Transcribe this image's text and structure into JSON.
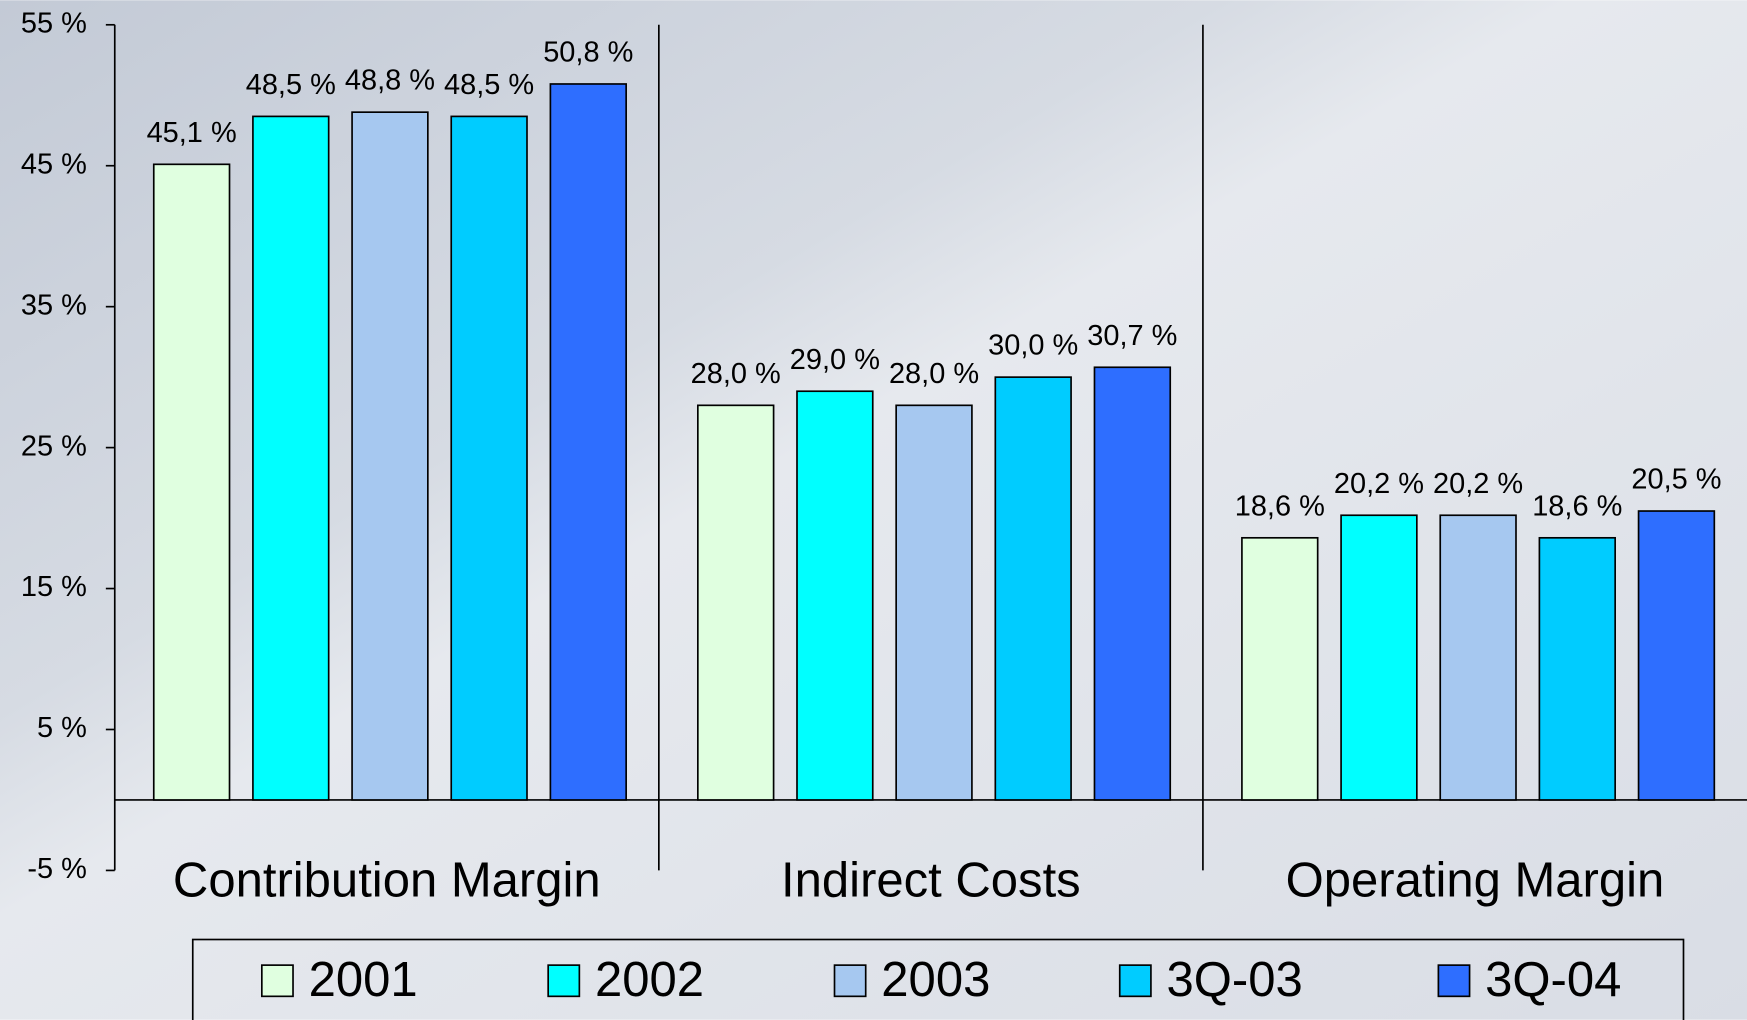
{
  "chart_data": {
    "type": "bar",
    "categories": [
      "Contribution Margin",
      "Indirect Costs",
      "Operating Margin"
    ],
    "series": [
      {
        "name": "2001",
        "color": "#e0ffe0",
        "values": [
          45.1,
          28.0,
          18.6
        ],
        "value_labels": [
          "45,1 %",
          "28,0 %",
          "18,6 %"
        ]
      },
      {
        "name": "2002",
        "color": "#00ffff",
        "values": [
          48.5,
          29.0,
          20.2
        ],
        "value_labels": [
          "48,5 %",
          "29,0 %",
          "20,2 %"
        ]
      },
      {
        "name": "2003",
        "color": "#a6c8f0",
        "values": [
          48.8,
          28.0,
          20.2
        ],
        "value_labels": [
          "48,8 %",
          "28,0 %",
          "20,2 %"
        ]
      },
      {
        "name": "3Q-03",
        "color": "#00ccff",
        "values": [
          48.5,
          30.0,
          18.6
        ],
        "value_labels": [
          "48,5 %",
          "30,0 %",
          "18,6 %"
        ]
      },
      {
        "name": "3Q-04",
        "color": "#2e6eff",
        "values": [
          50.8,
          30.7,
          20.5
        ],
        "value_labels": [
          "50,8 %",
          "30,7 %",
          "20,5 %"
        ]
      }
    ],
    "ylim": [
      -5,
      55
    ],
    "yticks": [
      {
        "value": -5,
        "label": "-5 %"
      },
      {
        "value": 5,
        "label": "5 %"
      },
      {
        "value": 15,
        "label": "15 %"
      },
      {
        "value": 25,
        "label": "25 %"
      },
      {
        "value": 35,
        "label": "35 %"
      },
      {
        "value": 45,
        "label": "45 %"
      },
      {
        "value": 55,
        "label": "55 %"
      }
    ],
    "legend": "bottom"
  }
}
